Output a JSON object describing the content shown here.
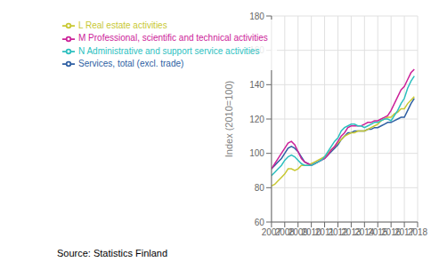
{
  "chart_data": {
    "type": "line",
    "ylabel": "Index (2010=100)",
    "annotations": [
      "Source: Statistics Finland"
    ],
    "x": [
      2007.0,
      2007.25,
      2007.5,
      2007.75,
      2008.0,
      2008.25,
      2008.5,
      2008.75,
      2009.0,
      2009.25,
      2009.5,
      2009.75,
      2010.0,
      2010.25,
      2010.5,
      2010.75,
      2011.0,
      2011.25,
      2011.5,
      2011.75,
      2012.0,
      2012.25,
      2012.5,
      2012.75,
      2013.0,
      2013.25,
      2013.5,
      2013.75,
      2014.0,
      2014.25,
      2014.5,
      2014.75,
      2015.0,
      2015.25,
      2015.5,
      2015.75,
      2016.0,
      2016.25,
      2016.5,
      2016.75,
      2017.0,
      2017.25,
      2017.5,
      2017.75
    ],
    "series": [
      {
        "name": "Services, total (excl. trade)",
        "color": "#2E5FA3",
        "values": [
          91,
          93,
          95,
          97,
          100,
          103,
          104,
          103,
          101,
          98,
          95,
          94,
          93,
          94,
          95,
          96,
          97,
          99,
          101,
          103,
          105,
          108,
          110,
          112,
          112,
          113,
          113,
          113,
          113,
          114,
          114,
          115,
          115,
          116,
          117,
          118,
          118,
          119,
          120,
          121,
          121,
          125,
          129,
          132
        ]
      },
      {
        "name": "L Real estate activities",
        "color": "#C8C832",
        "values": [
          81,
          82,
          84,
          86,
          88,
          91,
          91,
          90,
          91,
          93,
          93,
          93,
          94,
          95,
          96,
          97,
          98,
          100,
          102,
          104,
          106,
          108,
          110,
          111,
          112,
          112,
          113,
          113,
          113,
          114,
          115,
          116,
          117,
          119,
          120,
          121,
          121,
          123,
          124,
          126,
          126,
          129,
          131,
          133
        ]
      },
      {
        "name": "M Professional, scientific and technical activities",
        "color": "#CC2299",
        "values": [
          91,
          94,
          97,
          100,
          103,
          106,
          107,
          105,
          101,
          97,
          95,
          94,
          93,
          94,
          95,
          96,
          97,
          99,
          102,
          104,
          107,
          110,
          112,
          115,
          116,
          116,
          116,
          116,
          117,
          118,
          118,
          119,
          119,
          120,
          121,
          122,
          125,
          129,
          133,
          137,
          139,
          143,
          147,
          149
        ]
      },
      {
        "name": "N Administrative and support service activities",
        "color": "#2DBFBF",
        "values": [
          87,
          89,
          91,
          93,
          96,
          98,
          99,
          98,
          96,
          94,
          93,
          93,
          93,
          94,
          95,
          96,
          98,
          101,
          104,
          107,
          109,
          113,
          115,
          116,
          117,
          117,
          116,
          116,
          115,
          116,
          117,
          118,
          118,
          119,
          120,
          120,
          119,
          122,
          125,
          129,
          132,
          138,
          142,
          145
        ]
      }
    ],
    "xlim": [
      2007,
      2018
    ],
    "xticks": [
      2007,
      2008,
      2009,
      2010,
      2011,
      2012,
      2013,
      2014,
      2015,
      2016,
      2017,
      2018
    ],
    "ylim": [
      60,
      180
    ],
    "yticks": [
      60,
      80,
      100,
      120,
      140,
      160,
      180
    ],
    "grid": true,
    "legend": "upper left"
  }
}
